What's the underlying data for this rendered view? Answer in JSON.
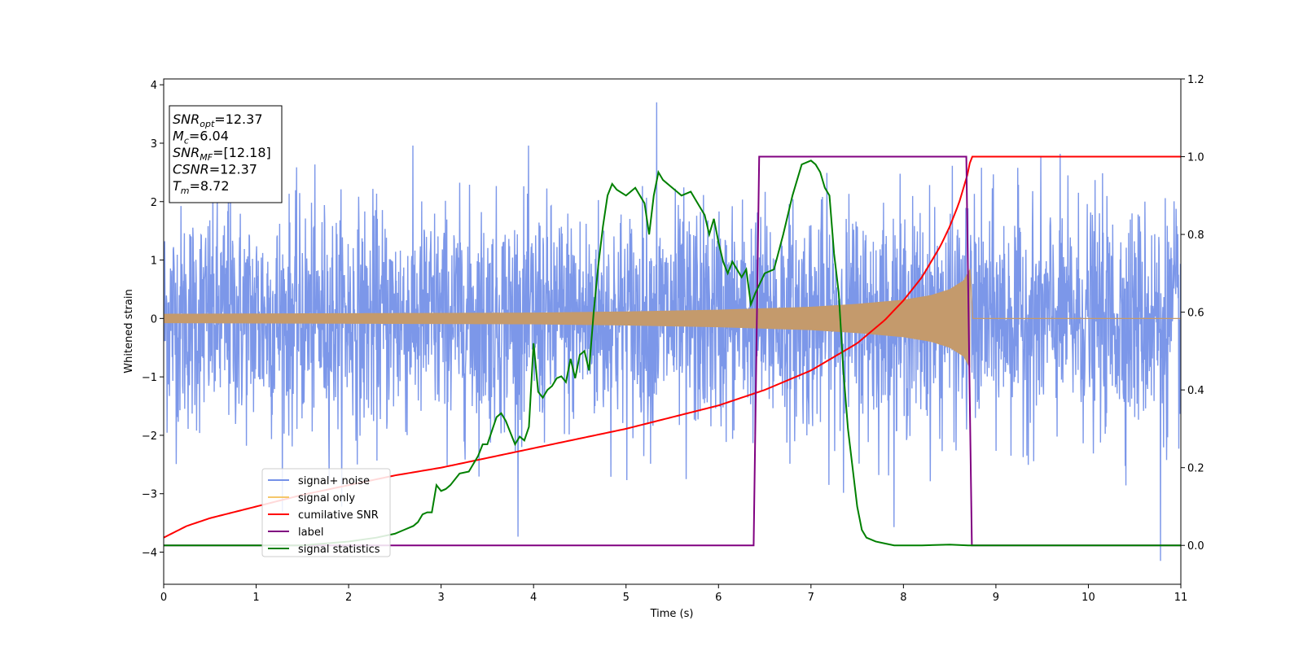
{
  "chart_data": {
    "type": "line",
    "title": "",
    "xlabel": "Time (s)",
    "ylabel": "Whitened strain",
    "xlim": [
      0,
      11
    ],
    "ylim": [
      -4.55,
      4.1
    ],
    "y2lim": [
      -0.1,
      1.2
    ],
    "grid": false,
    "x_ticks": [
      0,
      1,
      2,
      3,
      4,
      5,
      6,
      7,
      8,
      9,
      10,
      11
    ],
    "x_tick_labels": [
      "0",
      "1",
      "2",
      "3",
      "4",
      "5",
      "6",
      "7",
      "8",
      "9",
      "10",
      "11"
    ],
    "y_ticks": [
      -4,
      -3,
      -2,
      -1,
      0,
      1,
      2,
      3,
      4
    ],
    "y_tick_labels": [
      "−4",
      "−3",
      "−2",
      "−1",
      "0",
      "1",
      "2",
      "3",
      "4"
    ],
    "y2_ticks": [
      0.0,
      0.2,
      0.4,
      0.6,
      0.8,
      1.0,
      1.2
    ],
    "y2_tick_labels": [
      "0.0",
      "0.2",
      "0.4",
      "0.6",
      "0.8",
      "1.0",
      "1.2"
    ],
    "legend": {
      "placement": "lower-left",
      "entries": [
        {
          "label": "signal+ noise",
          "color": "#7591e8"
        },
        {
          "label": "signal only",
          "color": "#f5c76a"
        },
        {
          "label": "cumilative SNR",
          "color": "#ff0000"
        },
        {
          "label": "label",
          "color": "#800080"
        },
        {
          "label": "signal statistics",
          "color": "#008000"
        }
      ]
    },
    "annotation": {
      "placement": "top-left",
      "lines": [
        {
          "sym": "SNR",
          "sub": "opt",
          "text": "=12.37"
        },
        {
          "sym": "M",
          "sub": "c",
          "text": "=6.04"
        },
        {
          "sym": "SNR",
          "sub": "MF",
          "text": "=[12.18]"
        },
        {
          "sym": "CSNR",
          "sub": "",
          "text": "=12.37"
        },
        {
          "sym": "T",
          "sub": "m",
          "text": "=8.72"
        }
      ]
    },
    "series": [
      {
        "name": "signal+ noise",
        "axis": "left",
        "color": "#7591e8",
        "style": "noise",
        "x_range": [
          0,
          11
        ],
        "std": 0.95,
        "min": -4.15,
        "max": 3.7,
        "peaks": [
          [
            5.33,
            3.7
          ],
          [
            10.78,
            -4.15
          ],
          [
            0.7,
            2.9
          ],
          [
            5.65,
            -2.75
          ]
        ]
      },
      {
        "name": "signal only",
        "axis": "left",
        "color": "#c49a6c",
        "style": "chirp",
        "x_range": [
          0,
          8.72
        ],
        "envelope": {
          "x": [
            0,
            2,
            4,
            5,
            6,
            7,
            7.5,
            8,
            8.3,
            8.5,
            8.65,
            8.72
          ],
          "y": [
            0.08,
            0.09,
            0.1,
            0.12,
            0.15,
            0.2,
            0.25,
            0.32,
            0.4,
            0.5,
            0.65,
            0.85
          ]
        }
      },
      {
        "name": "cumilative SNR",
        "axis": "right",
        "color": "#ff0000",
        "x": [
          0,
          0.25,
          0.5,
          1,
          1.5,
          2,
          2.5,
          3,
          3.5,
          4,
          4.5,
          5,
          5.5,
          6,
          6.5,
          7,
          7.5,
          7.8,
          8,
          8.2,
          8.4,
          8.5,
          8.6,
          8.7,
          8.73,
          8.8,
          9,
          10,
          11
        ],
        "y": [
          0.02,
          0.05,
          0.07,
          0.1,
          0.13,
          0.155,
          0.18,
          0.2,
          0.225,
          0.25,
          0.275,
          0.3,
          0.33,
          0.36,
          0.4,
          0.45,
          0.52,
          0.58,
          0.63,
          0.69,
          0.77,
          0.82,
          0.88,
          0.96,
          1.0,
          1.0,
          1.0,
          1.0,
          1.0
        ]
      },
      {
        "name": "label",
        "axis": "right",
        "color": "#800080",
        "x": [
          0,
          6.38,
          6.44,
          8.68,
          8.74,
          11
        ],
        "y": [
          0,
          0,
          1,
          1,
          0,
          0
        ]
      },
      {
        "name": "signal statistics",
        "axis": "right",
        "color": "#008000",
        "x": [
          0,
          0.5,
          1,
          1.5,
          2,
          2.3,
          2.5,
          2.6,
          2.7,
          2.75,
          2.8,
          2.85,
          2.9,
          2.95,
          3,
          3.05,
          3.1,
          3.2,
          3.3,
          3.4,
          3.45,
          3.5,
          3.55,
          3.6,
          3.65,
          3.7,
          3.75,
          3.8,
          3.85,
          3.9,
          3.95,
          4.0,
          4.05,
          4.1,
          4.15,
          4.2,
          4.25,
          4.3,
          4.35,
          4.4,
          4.45,
          4.5,
          4.55,
          4.6,
          4.65,
          4.7,
          4.75,
          4.8,
          4.85,
          4.9,
          5.0,
          5.1,
          5.2,
          5.25,
          5.3,
          5.35,
          5.4,
          5.5,
          5.55,
          5.6,
          5.7,
          5.75,
          5.8,
          5.85,
          5.9,
          5.95,
          6.0,
          6.05,
          6.1,
          6.15,
          6.2,
          6.25,
          6.3,
          6.35,
          6.4,
          6.5,
          6.6,
          6.7,
          6.8,
          6.9,
          7.0,
          7.05,
          7.1,
          7.15,
          7.2,
          7.25,
          7.3,
          7.35,
          7.4,
          7.45,
          7.5,
          7.55,
          7.6,
          7.7,
          7.8,
          7.9,
          8.0,
          8.2,
          8.5,
          8.7,
          9,
          10,
          11
        ],
        "y": [
          0,
          0.0,
          0.0,
          0.0,
          0.01,
          0.02,
          0.03,
          0.04,
          0.05,
          0.06,
          0.08,
          0.085,
          0.085,
          0.155,
          0.14,
          0.145,
          0.155,
          0.185,
          0.19,
          0.23,
          0.26,
          0.26,
          0.295,
          0.33,
          0.34,
          0.32,
          0.29,
          0.26,
          0.28,
          0.27,
          0.305,
          0.52,
          0.395,
          0.38,
          0.4,
          0.41,
          0.43,
          0.435,
          0.42,
          0.48,
          0.43,
          0.49,
          0.5,
          0.45,
          0.6,
          0.72,
          0.82,
          0.9,
          0.93,
          0.915,
          0.9,
          0.92,
          0.88,
          0.8,
          0.9,
          0.96,
          0.94,
          0.92,
          0.91,
          0.9,
          0.91,
          0.89,
          0.87,
          0.85,
          0.8,
          0.84,
          0.78,
          0.73,
          0.7,
          0.73,
          0.71,
          0.69,
          0.71,
          0.62,
          0.65,
          0.7,
          0.71,
          0.8,
          0.9,
          0.98,
          0.99,
          0.98,
          0.96,
          0.92,
          0.9,
          0.75,
          0.65,
          0.45,
          0.3,
          0.2,
          0.1,
          0.04,
          0.02,
          0.01,
          0.005,
          0.0,
          0.0,
          0.0,
          0.002,
          0.0,
          0.0,
          0.0,
          0.0
        ]
      }
    ]
  }
}
